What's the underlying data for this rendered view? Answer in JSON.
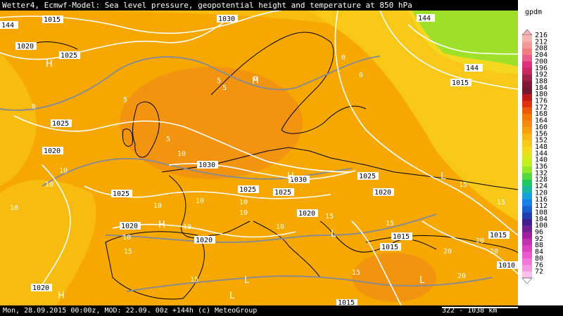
{
  "title": "Wetter4, Ecmwf-Model: Sea level pressure, geopotential height and temperature at 850 hPa",
  "footer": {
    "valid_time": "Mon, 28.09.2015 00:00z, MOD: 22.09. 00z +144h (c) MeteoGroup",
    "scale": "322 - 1038 km"
  },
  "legend": {
    "unit": "gpdm",
    "values": [
      "216",
      "212",
      "208",
      "204",
      "200",
      "196",
      "192",
      "188",
      "184",
      "180",
      "176",
      "172",
      "168",
      "164",
      "160",
      "156",
      "152",
      "148",
      "144",
      "140",
      "136",
      "132",
      "128",
      "124",
      "120",
      "116",
      "112",
      "108",
      "104",
      "100",
      "96",
      "92",
      "88",
      "84",
      "80",
      "76",
      "72"
    ],
    "colors": [
      "#f7b2b2",
      "#f29a9a",
      "#ee8080",
      "#ea5c8c",
      "#e0307a",
      "#c82860",
      "#a0204a",
      "#801838",
      "#701830",
      "#c01818",
      "#e03010",
      "#ee5a08",
      "#f47808",
      "#f58c10",
      "#f6a010",
      "#f8b814",
      "#f8c818",
      "#f4d820",
      "#dce820",
      "#c0f020",
      "#94e828",
      "#58d840",
      "#20c860",
      "#18b8a0",
      "#18a0d8",
      "#1880e8",
      "#1860d0",
      "#2040b0",
      "#402090",
      "#702090",
      "#a020a0",
      "#c030b0",
      "#e040c0",
      "#e858d0",
      "#f078d8",
      "#f498e0",
      "#f8c0ec"
    ]
  },
  "map": {
    "pressure_labels": [
      {
        "id": "1015-a",
        "text": "1015"
      },
      {
        "id": "1030-a",
        "text": "1030"
      },
      {
        "id": "144-a",
        "text": "144"
      },
      {
        "id": "1020-a",
        "text": "1020"
      },
      {
        "id": "1025-a",
        "text": "1025"
      },
      {
        "id": "1015-b",
        "text": "1015"
      },
      {
        "id": "1025-b",
        "text": "1025"
      },
      {
        "id": "1020-b",
        "text": "1020"
      },
      {
        "id": "1030-b",
        "text": "1030"
      },
      {
        "id": "1030-c",
        "text": "1030"
      },
      {
        "id": "1025-c",
        "text": "1025"
      },
      {
        "id": "1025-d",
        "text": "1025"
      },
      {
        "id": "1025-e",
        "text": "1025"
      },
      {
        "id": "1020-c",
        "text": "1020"
      },
      {
        "id": "1025-f",
        "text": "1025"
      },
      {
        "id": "1020-d",
        "text": "1020"
      },
      {
        "id": "1020-e",
        "text": "1020"
      },
      {
        "id": "1020-f",
        "text": "1020"
      },
      {
        "id": "1015-c",
        "text": "1015"
      },
      {
        "id": "1015-d",
        "text": "1015"
      },
      {
        "id": "1015-e",
        "text": "1015"
      },
      {
        "id": "1010",
        "text": "1010"
      },
      {
        "id": "1020-g",
        "text": "1020"
      },
      {
        "id": "1015-f",
        "text": "1015"
      },
      {
        "id": "144-b",
        "text": "144"
      },
      {
        "id": "144-c",
        "text": "144"
      }
    ],
    "temperature_labels": [
      {
        "id": "t0-a",
        "text": "0"
      },
      {
        "id": "t0-b",
        "text": "0"
      },
      {
        "id": "t0-c",
        "text": "0"
      },
      {
        "id": "t0-d",
        "text": "0"
      },
      {
        "id": "t5-a",
        "text": "5"
      },
      {
        "id": "t5-b",
        "text": "5"
      },
      {
        "id": "t5-c",
        "text": "5"
      },
      {
        "id": "t5-d",
        "text": "5"
      },
      {
        "id": "t10-a",
        "text": "10"
      },
      {
        "id": "t10-b",
        "text": "10"
      },
      {
        "id": "t10-c",
        "text": "10"
      },
      {
        "id": "t10-d",
        "text": "10"
      },
      {
        "id": "t10-e",
        "text": "10"
      },
      {
        "id": "t10-f",
        "text": "10"
      },
      {
        "id": "t10-g",
        "text": "10"
      },
      {
        "id": "t10-h",
        "text": "10"
      },
      {
        "id": "t10-i",
        "text": "10"
      },
      {
        "id": "t10-j",
        "text": "10"
      },
      {
        "id": "t10-k",
        "text": "10"
      },
      {
        "id": "t15-a",
        "text": "15"
      },
      {
        "id": "t15-b",
        "text": "15"
      },
      {
        "id": "t15-c",
        "text": "15"
      },
      {
        "id": "t15-d",
        "text": "15"
      },
      {
        "id": "t15-e",
        "text": "15"
      },
      {
        "id": "t15-f",
        "text": "15"
      },
      {
        "id": "t15-g",
        "text": "15"
      },
      {
        "id": "t20-a",
        "text": "20"
      },
      {
        "id": "t20-b",
        "text": "20"
      },
      {
        "id": "t20-c",
        "text": "20"
      },
      {
        "id": "t20-d",
        "text": "20"
      }
    ],
    "pressure_centers": [
      {
        "id": "H-a",
        "text": "H"
      },
      {
        "id": "H-b",
        "text": "H"
      },
      {
        "id": "H-c",
        "text": "H"
      },
      {
        "id": "H-d",
        "text": "H"
      },
      {
        "id": "H-e",
        "text": "H"
      },
      {
        "id": "L-a",
        "text": "L"
      },
      {
        "id": "L-b",
        "text": "L"
      },
      {
        "id": "L-c",
        "text": "L"
      },
      {
        "id": "L-d",
        "text": "L"
      },
      {
        "id": "L-e",
        "text": "L"
      }
    ]
  }
}
